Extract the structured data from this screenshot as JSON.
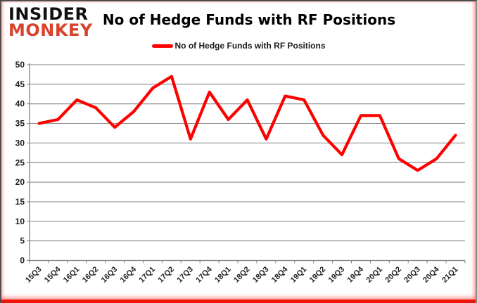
{
  "logo": {
    "line1": "INSIDER",
    "line2": "MONKEY",
    "line1_color": "#111111",
    "line2_color": "#d8432c"
  },
  "header": {
    "title": "No of Hedge Funds with RF Positions"
  },
  "legend": {
    "label": "No of Hedge Funds with RF Positions",
    "marker_color": "#fe0000"
  },
  "colors": {
    "series_red": "#fe0000",
    "gridline_gray": "#808080",
    "axis_text": "#1f1f1f",
    "frame_bottom_red": "#ee1608"
  },
  "chart_data": {
    "type": "line",
    "title": "No of Hedge Funds with RF Positions",
    "categories": [
      "15Q3",
      "15Q4",
      "16Q1",
      "16Q2",
      "16Q3",
      "16Q4",
      "17Q1",
      "17Q2",
      "17Q3",
      "17Q4",
      "18Q1",
      "18Q2",
      "18Q3",
      "18Q4",
      "19Q1",
      "19Q2",
      "19Q3",
      "19Q4",
      "20Q1",
      "20Q2",
      "20Q3",
      "20Q4",
      "21Q1"
    ],
    "series": [
      {
        "name": "No of Hedge Funds with RF Positions",
        "color": "#fe0000",
        "values": [
          35,
          36,
          41,
          39,
          34,
          38,
          44,
          47,
          31,
          43,
          36,
          41,
          31,
          42,
          41,
          32,
          27,
          37,
          37,
          26,
          23,
          26,
          32
        ]
      }
    ],
    "ylim": [
      0,
      50
    ],
    "ytick_step": 5,
    "grid": true,
    "legend_position": "top",
    "x_label_rotation_deg": -45
  }
}
